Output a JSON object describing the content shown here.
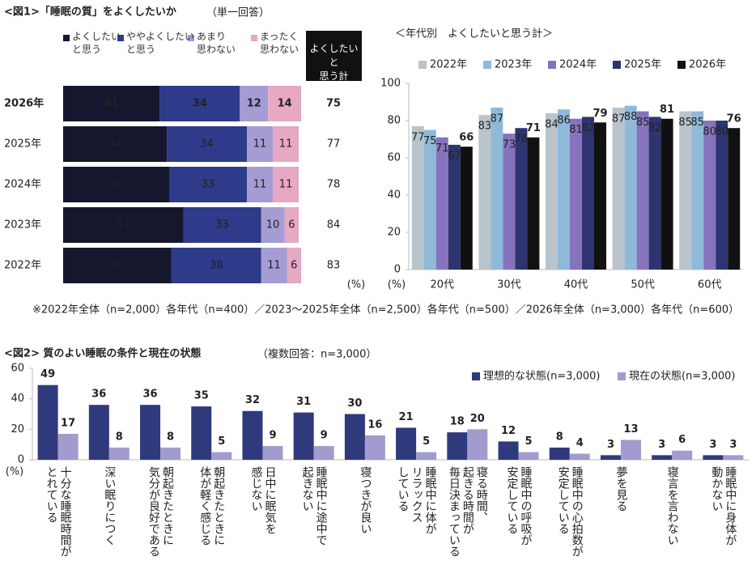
{
  "footnote": "※2022年全体（n=2,000）各年代（n=400）／2023～2025年全体（n=2,500）各年代（n=500）／2026年全体（n=3,000）各年代（n=600）",
  "chart_data": [
    {
      "type": "bar",
      "orientation": "horizontal",
      "stacked": true,
      "title": "<図1>「睡眠の質」をよくしたいか",
      "subtitle": "（単一回答）",
      "categories": [
        "2026年",
        "2025年",
        "2024年",
        "2023年",
        "2022年"
      ],
      "series": [
        {
          "name": "よくしたい\nと思う",
          "color": "#15172f",
          "values": [
            41,
            44,
            45,
            51,
            46
          ]
        },
        {
          "name": "ややよくしたい\nと思う",
          "color": "#2e3a8a",
          "values": [
            34,
            34,
            33,
            33,
            38
          ]
        },
        {
          "name": "あまり\n思わない",
          "color": "#a49cd2",
          "values": [
            12,
            11,
            11,
            10,
            11
          ]
        },
        {
          "name": "まったく\n思わない",
          "color": "#e6a8c3",
          "values": [
            14,
            11,
            11,
            6,
            6
          ]
        }
      ],
      "totals": {
        "label": "よくしたいと\n思う計",
        "values": [
          75,
          77,
          78,
          84,
          83
        ]
      },
      "unit": "(%)"
    },
    {
      "type": "bar",
      "title": "＜年代別　よくしたいと思う計＞",
      "categories": [
        "20代",
        "30代",
        "40代",
        "50代",
        "60代"
      ],
      "series": [
        {
          "name": "2022年",
          "color": "#b9c4cc",
          "values": [
            77,
            83,
            84,
            87,
            85
          ]
        },
        {
          "name": "2023年",
          "color": "#8fb9d9",
          "values": [
            75,
            87,
            86,
            88,
            85
          ]
        },
        {
          "name": "2024年",
          "color": "#8574bd",
          "values": [
            71,
            73,
            81,
            85,
            80
          ]
        },
        {
          "name": "2025年",
          "color": "#2e3470",
          "values": [
            67,
            76,
            82,
            82,
            80
          ]
        },
        {
          "name": "2026年",
          "color": "#111111",
          "values": [
            66,
            71,
            79,
            81,
            76
          ]
        }
      ],
      "ylim": [
        0,
        100
      ],
      "yticks": [
        0,
        20,
        40,
        60,
        80,
        100
      ],
      "grid": false,
      "unit": "(%)"
    },
    {
      "type": "bar",
      "title": "<図2> 質のよい睡眠の条件と現在の状態",
      "subtitle": "（複数回答：n=3,000）",
      "categories": [
        "十分な睡眠時間が\nとれている",
        "深い眠りにつく",
        "朝起きたときに\n気分が良好である",
        "朝起きたときに\n体が軽く感じる",
        "日中に眠気を\n感じない",
        "睡眠中に途中で\n起きない",
        "寝つきが良い",
        "睡眠中に体が\nリラックス\nしている",
        "寝る時間、\n起きる時間が\n毎日決まっている",
        "睡眠中の呼吸が\n安定している",
        "睡眠中の心拍数が\n安定している",
        "夢を見る",
        "寝言を言わない",
        "睡眠中に身体が\n動かない"
      ],
      "series": [
        {
          "name": "理想的な状態(n=3,000)",
          "color": "#2f3a7c",
          "values": [
            49,
            36,
            36,
            35,
            32,
            31,
            30,
            21,
            18,
            12,
            8,
            3,
            3,
            3
          ]
        },
        {
          "name": "現在の状態(n=3,000)",
          "color": "#a29bcd",
          "values": [
            17,
            8,
            8,
            5,
            9,
            9,
            16,
            5,
            20,
            5,
            4,
            13,
            6,
            3
          ]
        }
      ],
      "ylim": [
        0,
        60
      ],
      "yticks": [
        0,
        20,
        40,
        60
      ],
      "grid": false,
      "unit": "(%)"
    }
  ]
}
